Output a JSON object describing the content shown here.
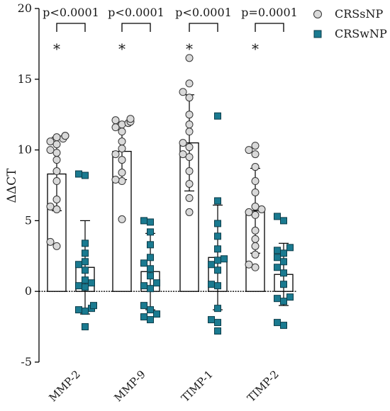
{
  "chart_data": {
    "type": "bar",
    "title": "",
    "xlabel": "",
    "ylabel": "ΔΔCT",
    "ylim": [
      -5,
      20
    ],
    "yticks": [
      -5,
      0,
      5,
      10,
      15,
      20
    ],
    "grid": false,
    "legend_position": "top-right",
    "categories": [
      "MMP-2",
      "MMP-9",
      "TIMP-1",
      "TIMP-2"
    ],
    "series": [
      {
        "name": "CRSsNP",
        "marker": "circle",
        "color": "#d9d9d9",
        "means": [
          8.3,
          9.9,
          10.5,
          5.7
        ],
        "sd": [
          2.6,
          2.0,
          3.4,
          3.0
        ],
        "points": [
          [
            11.0,
            11.0,
            10.9,
            10.8,
            10.6,
            10.4,
            10.0,
            9.8,
            9.3,
            8.5,
            7.8,
            6.5,
            6.0,
            5.8,
            3.5,
            3.2
          ],
          [
            12.2,
            12.1,
            12.0,
            11.9,
            11.8,
            11.6,
            11.3,
            10.6,
            10.1,
            9.7,
            9.3,
            8.4,
            7.9,
            7.8,
            5.1
          ],
          [
            16.5,
            14.7,
            14.1,
            13.7,
            12.5,
            11.8,
            11.3,
            10.5,
            10.2,
            9.7,
            9.5,
            8.5,
            7.6,
            6.6,
            5.6
          ],
          [
            10.3,
            10.0,
            9.7,
            8.8,
            7.8,
            7.0,
            6.0,
            5.8,
            5.6,
            5.4,
            4.3,
            3.7,
            3.2,
            2.6,
            1.9,
            1.7
          ]
        ]
      },
      {
        "name": "CRSwNP",
        "marker": "square",
        "color": "#1a7a90",
        "means": [
          1.7,
          1.4,
          2.4,
          1.2
        ],
        "sd": [
          3.3,
          2.7,
          3.7,
          2.2
        ],
        "points": [
          [
            8.3,
            8.2,
            3.4,
            2.7,
            2.1,
            1.9,
            1.5,
            0.8,
            0.6,
            0.4,
            0.3,
            -1.0,
            -1.2,
            -1.3,
            -1.4,
            -2.5
          ],
          [
            5.0,
            4.9,
            4.2,
            3.3,
            2.4,
            2.0,
            1.6,
            1.1,
            0.6,
            0.4,
            0.2,
            -1.0,
            -1.3,
            -1.6,
            -1.8,
            -2.0
          ],
          [
            12.4,
            6.4,
            4.8,
            3.9,
            3.0,
            2.3,
            2.2,
            1.9,
            1.5,
            0.5,
            0.4,
            -1.2,
            -2.0,
            -2.2,
            -2.8
          ],
          [
            5.3,
            5.0,
            3.1,
            2.9,
            2.7,
            2.4,
            2.1,
            1.7,
            1.3,
            0.5,
            -0.4,
            -0.5,
            -0.7,
            -2.2,
            -2.4
          ]
        ]
      }
    ],
    "annotations": [
      {
        "category": "MMP-2",
        "p_label": "p<0.0001",
        "star": "*"
      },
      {
        "category": "MMP-9",
        "p_label": "p<0.0001",
        "star": "*"
      },
      {
        "category": "TIMP-1",
        "p_label": "p<0.0001",
        "star": "*"
      },
      {
        "category": "TIMP-2",
        "p_label": "p=0.0001",
        "star": "*"
      }
    ]
  }
}
